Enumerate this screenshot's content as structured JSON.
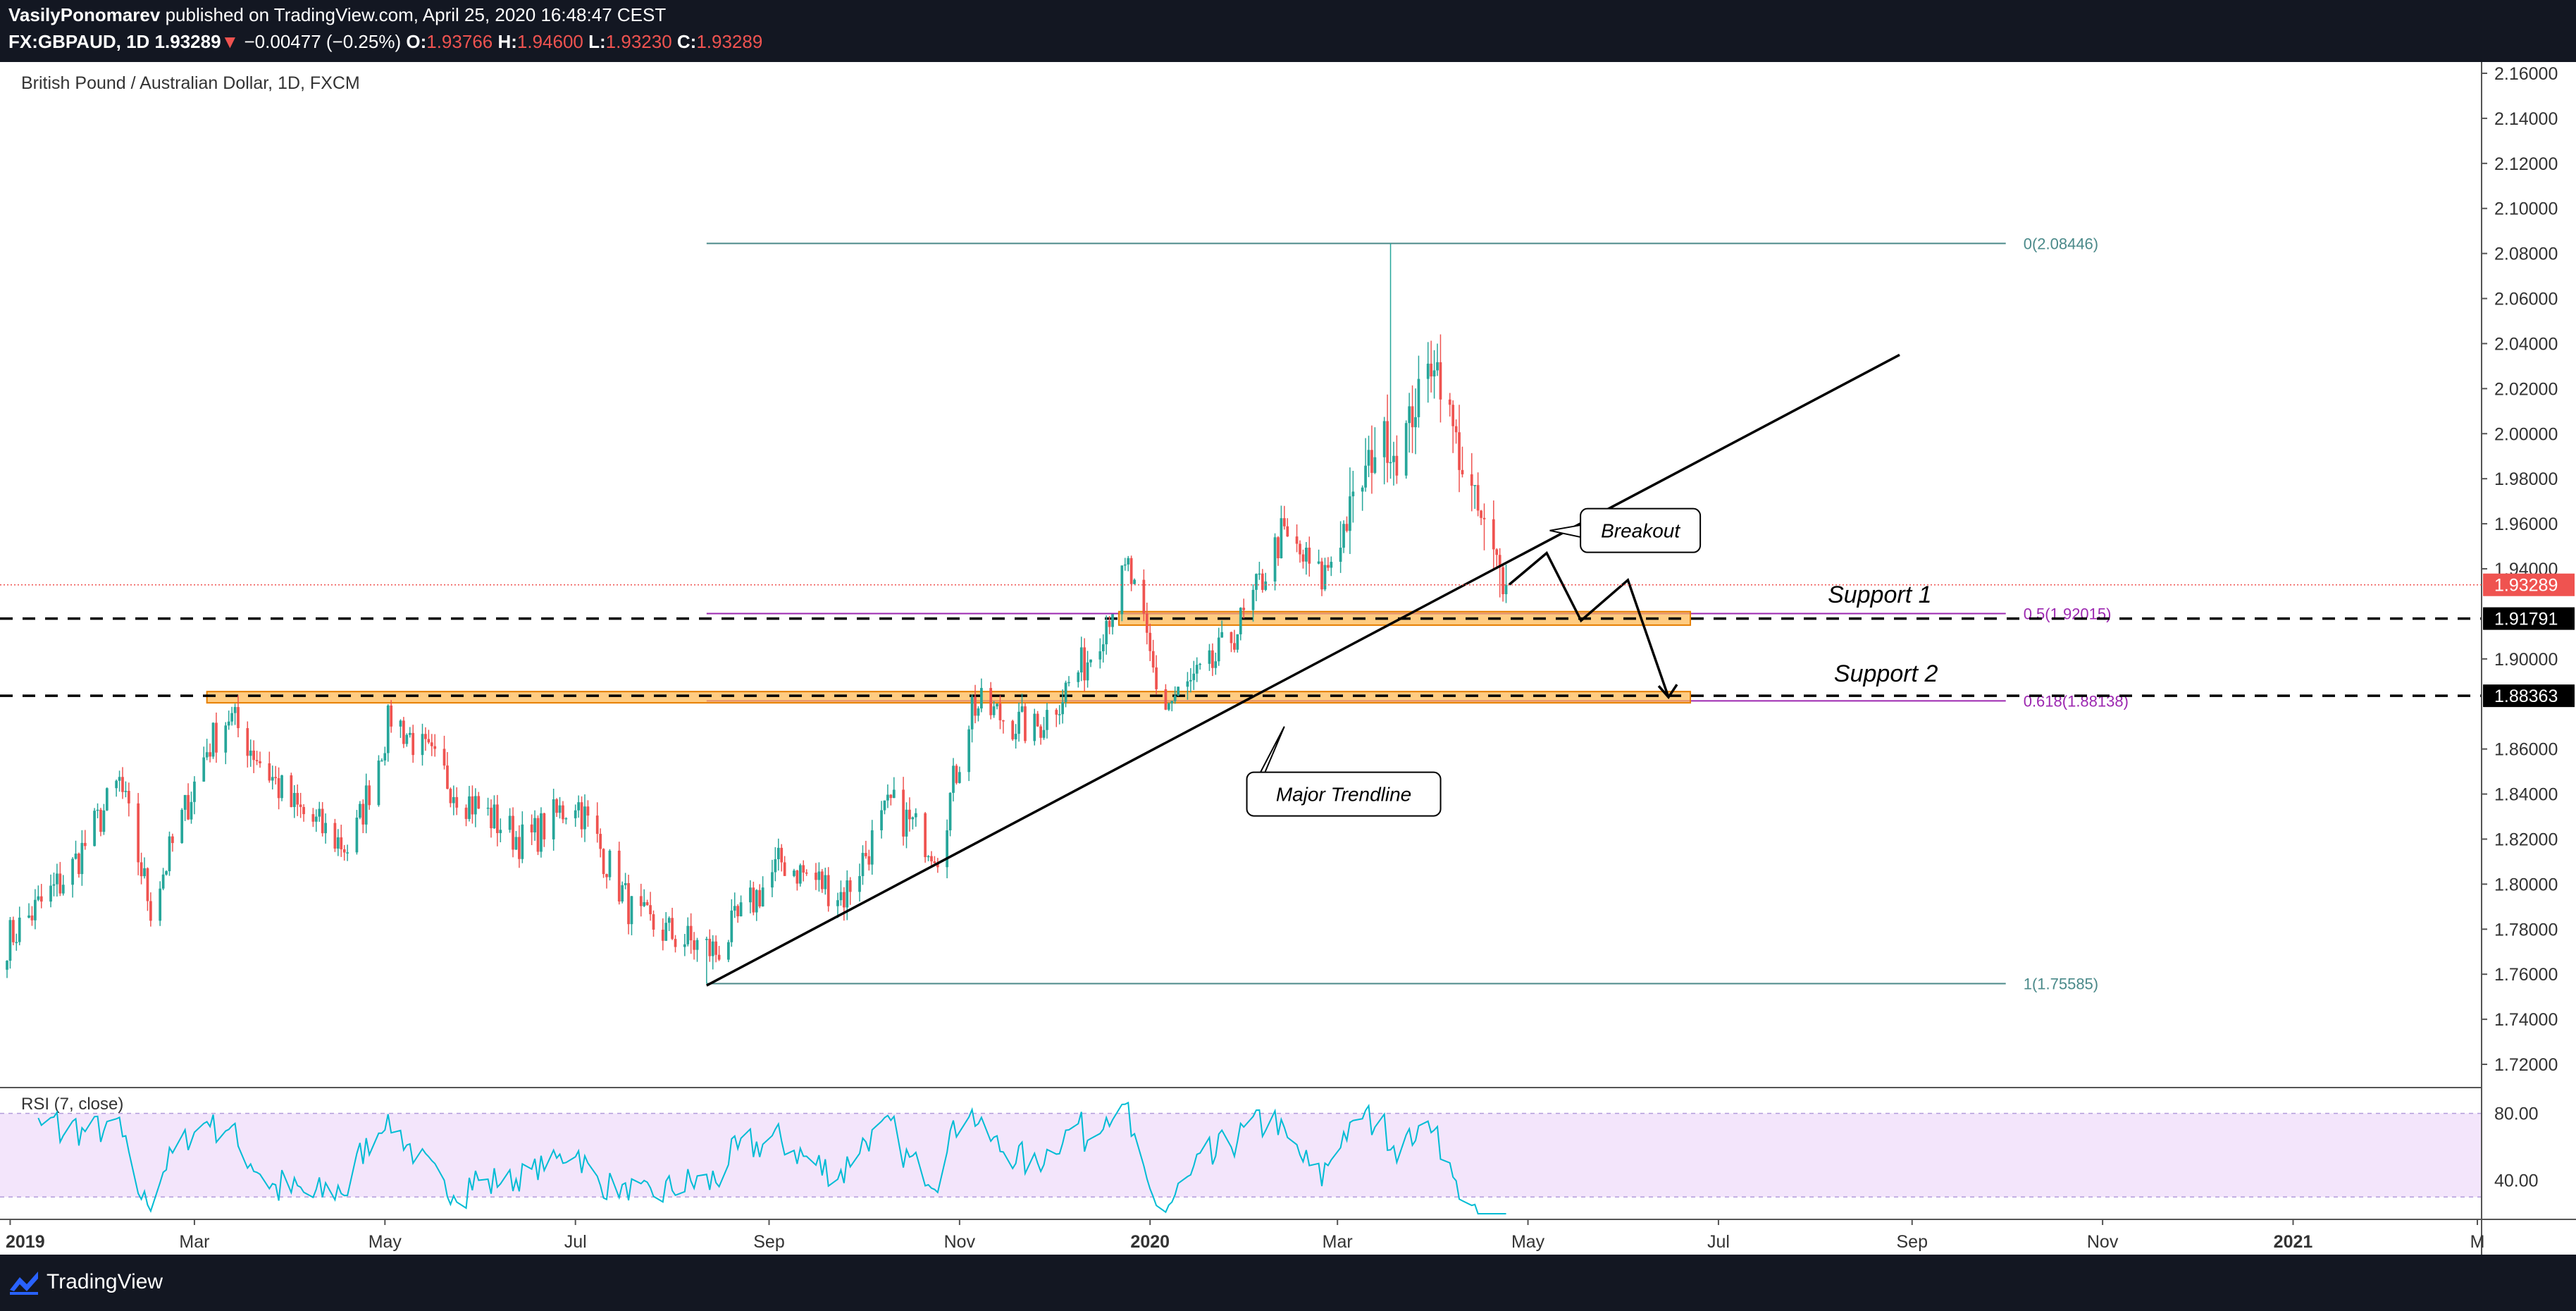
{
  "header": {
    "author": "VasilyPonomarev",
    "published_text": "published on TradingView.com, April 25, 2020 16:48:47 CEST",
    "symbol": "FX:GBPAUD, 1D",
    "last_price": "1.93289",
    "change_arrow": "▼",
    "change": "−0.00477 (−0.25%)",
    "ohlc": [
      {
        "label": "O:",
        "value": "1.93766"
      },
      {
        "label": "H:",
        "value": "1.94600"
      },
      {
        "label": "L:",
        "value": "1.93230"
      },
      {
        "label": "C:",
        "value": "1.93289"
      }
    ]
  },
  "footer": {
    "brand": "TradingView"
  },
  "colors": {
    "up": "#26a69a",
    "down": "#ef5350",
    "fib": "#9c27b0",
    "fib_guide": "#4b8a8a",
    "zone_fill": "#ffb74d",
    "zone_border": "#e67e00",
    "rsi": "#00bcd4",
    "rsi_band": "#f3e5fb",
    "price_tag": "#ef5350",
    "level_tag": "#000000"
  },
  "chart_data": {
    "type": "candlestick",
    "title": "British Pound / Australian Dollar, 1D, FXCM",
    "x_axis_labels": [
      "2019",
      "Mar",
      "May",
      "Jul",
      "Sep",
      "Nov",
      "2020",
      "Mar",
      "May",
      "Jul",
      "Sep",
      "Nov",
      "2021",
      "M"
    ],
    "y_axis_ticks": [
      "2.16000",
      "2.14000",
      "2.12000",
      "2.10000",
      "2.08000",
      "2.06000",
      "2.04000",
      "2.02000",
      "2.00000",
      "1.98000",
      "1.96000",
      "1.94000",
      "1.90000",
      "1.86000",
      "1.84000",
      "1.82000",
      "1.80000",
      "1.78000",
      "1.76000",
      "1.74000",
      "1.72000"
    ],
    "ylim": [
      1.71,
      2.165
    ],
    "price_close_anchors": [
      {
        "date": "2018-12-31",
        "close": 1.775
      },
      {
        "date": "2019-01-20",
        "close": 1.805
      },
      {
        "date": "2019-02-05",
        "close": 1.845
      },
      {
        "date": "2019-02-15",
        "close": 1.79
      },
      {
        "date": "2019-03-05",
        "close": 1.86
      },
      {
        "date": "2019-03-12",
        "close": 1.875
      },
      {
        "date": "2019-04-01",
        "close": 1.835
      },
      {
        "date": "2019-04-20",
        "close": 1.815
      },
      {
        "date": "2019-05-03",
        "close": 1.875
      },
      {
        "date": "2019-05-25",
        "close": 1.84
      },
      {
        "date": "2019-06-15",
        "close": 1.818
      },
      {
        "date": "2019-07-01",
        "close": 1.838
      },
      {
        "date": "2019-07-20",
        "close": 1.785
      },
      {
        "date": "2019-08-05",
        "close": 1.775
      },
      {
        "date": "2019-08-15",
        "close": 1.77
      },
      {
        "date": "2019-09-05",
        "close": 1.81
      },
      {
        "date": "2019-09-25",
        "close": 1.795
      },
      {
        "date": "2019-10-10",
        "close": 1.835
      },
      {
        "date": "2019-10-25",
        "close": 1.815
      },
      {
        "date": "2019-11-05",
        "close": 1.88
      },
      {
        "date": "2019-11-25",
        "close": 1.868
      },
      {
        "date": "2019-12-12",
        "close": 1.9
      },
      {
        "date": "2019-12-25",
        "close": 1.94
      },
      {
        "date": "2020-01-05",
        "close": 1.878
      },
      {
        "date": "2020-01-20",
        "close": 1.895
      },
      {
        "date": "2020-02-01",
        "close": 1.92
      },
      {
        "date": "2020-02-12",
        "close": 1.955
      },
      {
        "date": "2020-02-25",
        "close": 1.935
      },
      {
        "date": "2020-03-05",
        "close": 1.965
      },
      {
        "date": "2020-03-15",
        "close": 2.0
      },
      {
        "date": "2020-03-20",
        "close": 1.99
      },
      {
        "date": "2020-04-01",
        "close": 2.035
      },
      {
        "date": "2020-04-10",
        "close": 1.985
      },
      {
        "date": "2020-04-20",
        "close": 1.945
      },
      {
        "date": "2020-04-24",
        "close": 1.93289
      }
    ],
    "series_summary": {
      "last": 1.93289,
      "max_high": 2.08446,
      "min_low": 1.75585
    },
    "fib_retracement": [
      {
        "label": "0(2.08446)",
        "value": 2.08446
      },
      {
        "label": "0.5(1.92015)",
        "value": 1.92015
      },
      {
        "label": "0.618(1.88138)",
        "value": 1.88138
      },
      {
        "label": "1(1.75585)",
        "value": 1.75585
      }
    ],
    "trendline": [
      {
        "date": "2019-08-12",
        "value": 1.755
      },
      {
        "date": "2020-08-28",
        "value": 2.035
      }
    ],
    "zones": [
      {
        "name": "Support 1",
        "level": 1.91791,
        "from": "2019-12-22",
        "to": "2020-06-22",
        "low": 1.915,
        "high": 1.921
      },
      {
        "name": "Support 2",
        "level": 1.88363,
        "from": "2019-03-05",
        "to": "2020-06-22",
        "low": 1.8805,
        "high": 1.8855
      }
    ],
    "projection_path": [
      {
        "date": "2020-04-25",
        "value": 1.933
      },
      {
        "date": "2020-05-07",
        "value": 1.947
      },
      {
        "date": "2020-05-18",
        "value": 1.917
      },
      {
        "date": "2020-06-02",
        "value": 1.935
      },
      {
        "date": "2020-06-15",
        "value": 1.883
      }
    ],
    "annotations": [
      {
        "text": "Breakout",
        "date": "2020-06-06",
        "value": 1.957,
        "pointer_date": "2020-05-08",
        "pointer_value": 1.957
      },
      {
        "text": "Major Trendline",
        "date": "2020-03-03",
        "value": 1.84,
        "pointer_date": "2020-02-13",
        "pointer_value": 1.87
      }
    ],
    "level_labels": [
      {
        "text": "Support 1",
        "date": "2020-08-05",
        "value": 1.925
      },
      {
        "text": "Support 2",
        "date": "2020-08-07",
        "value": 1.89
      }
    ],
    "price_axis_tags": [
      {
        "text": "1.93289",
        "value": 1.93289,
        "kind": "price"
      },
      {
        "text": "1.91791",
        "value": 1.91791,
        "kind": "level"
      },
      {
        "text": "1.88363",
        "value": 1.88363,
        "kind": "level"
      }
    ],
    "rsi": {
      "label": "RSI (7, close)",
      "ticks": [
        "80.00",
        "40.00"
      ],
      "band": [
        30,
        80
      ],
      "ylim": [
        20,
        95
      ]
    }
  }
}
